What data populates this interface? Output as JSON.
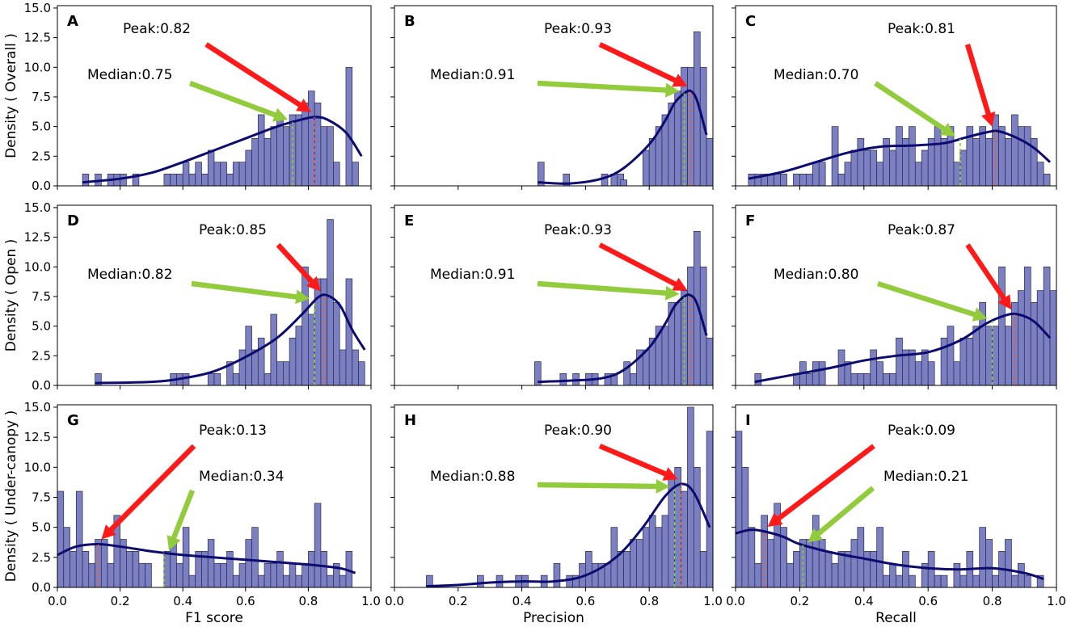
{
  "chart_data": [
    {
      "type": "histogram+kde",
      "panel": "A",
      "xlabel": "",
      "ylabel": "Density ( Overall )",
      "xlim": [
        0,
        1
      ],
      "ylim": [
        0,
        15.2
      ],
      "bin_width": 0.02,
      "x_ticks": [],
      "y_ticks": [
        "0.0",
        "2.5",
        "5.0",
        "7.5",
        "10.0",
        "12.5",
        "15.0"
      ],
      "bin_starts": [
        0.08,
        0.1,
        0.12,
        0.14,
        0.16,
        0.18,
        0.2,
        0.22,
        0.24,
        0.26,
        0.28,
        0.3,
        0.32,
        0.34,
        0.36,
        0.38,
        0.4,
        0.42,
        0.44,
        0.46,
        0.48,
        0.5,
        0.52,
        0.54,
        0.56,
        0.58,
        0.6,
        0.62,
        0.64,
        0.66,
        0.68,
        0.7,
        0.72,
        0.74,
        0.76,
        0.78,
        0.8,
        0.82,
        0.84,
        0.86,
        0.88,
        0.9,
        0.92,
        0.94,
        0.96
      ],
      "bin_values": [
        1,
        0,
        1,
        0,
        1,
        1,
        1,
        0,
        1,
        0,
        0,
        0,
        0,
        1,
        1,
        1,
        2,
        1,
        2,
        1,
        3,
        2,
        2,
        1,
        2,
        2,
        3,
        4,
        6,
        4,
        5,
        6,
        5,
        6,
        6,
        7,
        8,
        7,
        5,
        5,
        2,
        0,
        10,
        2,
        0
      ],
      "kde": {
        "x": [
          0.08,
          0.2,
          0.3,
          0.4,
          0.5,
          0.6,
          0.7,
          0.78,
          0.82,
          0.86,
          0.92,
          0.97
        ],
        "y": [
          0.3,
          0.6,
          1.1,
          2.0,
          3.0,
          4.0,
          5.0,
          5.6,
          5.8,
          5.6,
          4.5,
          2.5
        ]
      },
      "peak": {
        "value": 0.82,
        "label": "Peak:0.82"
      },
      "median": {
        "value": 0.75,
        "label": "Median:0.75"
      }
    },
    {
      "type": "histogram+kde",
      "panel": "B",
      "xlabel": "",
      "ylabel": "",
      "xlim": [
        0,
        1
      ],
      "ylim": [
        0,
        15.2
      ],
      "bin_width": 0.02,
      "x_ticks": [],
      "y_ticks": [],
      "bin_starts": [
        0.44,
        0.46,
        0.48,
        0.5,
        0.52,
        0.54,
        0.56,
        0.58,
        0.6,
        0.62,
        0.64,
        0.66,
        0.68,
        0.7,
        0.72,
        0.74,
        0.76,
        0.78,
        0.8,
        0.82,
        0.84,
        0.86,
        0.88,
        0.9,
        0.92,
        0.94,
        0.96,
        0.98
      ],
      "bin_values": [
        0,
        0,
        0,
        0,
        0,
        0,
        0,
        0,
        0,
        0,
        0,
        0,
        1,
        1,
        0,
        0,
        0,
        3,
        4,
        5,
        6,
        7,
        8,
        10,
        10,
        13,
        10,
        4
      ],
      "extra_bins": [
        {
          "start": 0.45,
          "value": 2
        },
        {
          "start": 0.53,
          "value": 1
        },
        {
          "start": 0.65,
          "value": 1
        },
        {
          "start": 0.71,
          "value": 0.5
        }
      ],
      "kde": {
        "x": [
          0.45,
          0.55,
          0.65,
          0.72,
          0.8,
          0.85,
          0.88,
          0.91,
          0.93,
          0.95,
          0.98
        ],
        "y": [
          0.3,
          0.2,
          0.6,
          1.5,
          3.5,
          5.5,
          7.0,
          7.8,
          8.0,
          7.2,
          4.3
        ]
      },
      "peak": {
        "value": 0.93,
        "label": "Peak:0.93"
      },
      "median": {
        "value": 0.91,
        "label": "Median:0.91"
      }
    },
    {
      "type": "histogram+kde",
      "panel": "C",
      "xlabel": "",
      "ylabel": "",
      "xlim": [
        0,
        1
      ],
      "ylim": [
        0,
        15.2
      ],
      "bin_width": 0.02,
      "x_ticks": [],
      "y_ticks": [],
      "bin_starts": [
        0.04,
        0.06,
        0.08,
        0.1,
        0.12,
        0.14,
        0.16,
        0.18,
        0.2,
        0.22,
        0.24,
        0.26,
        0.28,
        0.3,
        0.32,
        0.34,
        0.36,
        0.38,
        0.4,
        0.42,
        0.44,
        0.46,
        0.48,
        0.5,
        0.52,
        0.54,
        0.56,
        0.58,
        0.6,
        0.62,
        0.64,
        0.66,
        0.68,
        0.7,
        0.72,
        0.74,
        0.76,
        0.78,
        0.8,
        0.82,
        0.84,
        0.86,
        0.88,
        0.9,
        0.92,
        0.94,
        0.96,
        0.98
      ],
      "bin_values": [
        1,
        1,
        1,
        1,
        1,
        1,
        0,
        1,
        1,
        1,
        2,
        2,
        0,
        5,
        1,
        2,
        3,
        4,
        3,
        3,
        2,
        4,
        3,
        5,
        4,
        5,
        2,
        3,
        4,
        5,
        4,
        5,
        2,
        3,
        5,
        4,
        5,
        4,
        6,
        5,
        4,
        6,
        5,
        5,
        4,
        2,
        1,
        0
      ],
      "kde": {
        "x": [
          0.04,
          0.15,
          0.25,
          0.35,
          0.45,
          0.55,
          0.65,
          0.72,
          0.78,
          0.82,
          0.88,
          0.93,
          0.98
        ],
        "y": [
          0.6,
          1.2,
          2.0,
          2.8,
          3.3,
          3.4,
          3.6,
          4.1,
          4.5,
          4.6,
          4.0,
          3.2,
          2.0
        ]
      },
      "peak": {
        "value": 0.81,
        "label": "Peak:0.81"
      },
      "median": {
        "value": 0.7,
        "label": "Median:0.70"
      }
    },
    {
      "type": "histogram+kde",
      "panel": "D",
      "xlabel": "",
      "ylabel": "Density ( Open )",
      "xlim": [
        0,
        1
      ],
      "ylim": [
        0,
        15.2
      ],
      "bin_width": 0.02,
      "x_ticks": [],
      "y_ticks": [
        "0.0",
        "2.5",
        "5.0",
        "7.5",
        "10.0",
        "12.5",
        "15.0"
      ],
      "bin_starts": [
        0.12,
        0.14,
        0.16,
        0.18,
        0.2,
        0.22,
        0.24,
        0.26,
        0.28,
        0.3,
        0.32,
        0.34,
        0.36,
        0.38,
        0.4,
        0.42,
        0.44,
        0.46,
        0.48,
        0.5,
        0.52,
        0.54,
        0.56,
        0.58,
        0.6,
        0.62,
        0.64,
        0.66,
        0.68,
        0.7,
        0.72,
        0.74,
        0.76,
        0.78,
        0.8,
        0.82,
        0.84,
        0.86,
        0.88,
        0.9,
        0.92,
        0.94,
        0.96,
        0.98
      ],
      "bin_values": [
        1,
        0,
        0,
        0,
        0,
        0,
        0,
        0,
        0,
        0,
        0,
        0,
        1,
        1,
        1,
        0,
        0,
        0,
        1,
        1,
        0,
        2,
        1,
        3,
        5,
        3,
        4,
        1,
        6,
        2,
        2,
        4,
        5,
        10,
        6,
        9,
        9,
        14,
        7,
        3,
        9,
        3,
        2,
        0
      ],
      "kde": {
        "x": [
          0.12,
          0.3,
          0.4,
          0.5,
          0.6,
          0.7,
          0.78,
          0.83,
          0.86,
          0.9,
          0.94,
          0.98
        ],
        "y": [
          0.2,
          0.3,
          0.6,
          1.2,
          2.4,
          4.0,
          6.0,
          7.4,
          7.6,
          6.8,
          4.7,
          3.0
        ]
      },
      "peak": {
        "value": 0.85,
        "label": "Peak:0.85"
      },
      "median": {
        "value": 0.82,
        "label": "Median:0.82"
      }
    },
    {
      "type": "histogram+kde",
      "panel": "E",
      "xlabel": "",
      "ylabel": "",
      "xlim": [
        0,
        1
      ],
      "ylim": [
        0,
        15.2
      ],
      "bin_width": 0.02,
      "x_ticks": [],
      "y_ticks": [],
      "bin_starts": [
        0.44,
        0.46,
        0.48,
        0.5,
        0.52,
        0.54,
        0.56,
        0.58,
        0.6,
        0.62,
        0.64,
        0.66,
        0.68,
        0.7,
        0.72,
        0.74,
        0.76,
        0.78,
        0.8,
        0.82,
        0.84,
        0.86,
        0.88,
        0.9,
        0.92,
        0.94,
        0.96,
        0.98
      ],
      "bin_values": [
        2,
        0,
        0,
        0,
        1,
        0,
        1,
        0,
        1,
        1,
        0,
        1,
        1,
        0,
        2,
        1,
        3,
        3,
        4,
        5,
        5,
        7,
        7,
        8,
        10,
        13,
        10,
        4
      ],
      "kde": {
        "x": [
          0.45,
          0.55,
          0.65,
          0.72,
          0.8,
          0.85,
          0.88,
          0.91,
          0.93,
          0.95,
          0.98
        ],
        "y": [
          0.3,
          0.4,
          0.6,
          1.3,
          3.2,
          5.2,
          6.7,
          7.5,
          7.6,
          6.9,
          4.2
        ]
      },
      "peak": {
        "value": 0.93,
        "label": "Peak:0.93"
      },
      "median": {
        "value": 0.91,
        "label": "Median:0.91"
      }
    },
    {
      "type": "histogram+kde",
      "panel": "F",
      "xlabel": "",
      "ylabel": "",
      "xlim": [
        0,
        1
      ],
      "ylim": [
        0,
        15.2
      ],
      "bin_width": 0.02,
      "x_ticks": [],
      "y_ticks": [],
      "bin_starts": [
        0.06,
        0.08,
        0.1,
        0.12,
        0.14,
        0.16,
        0.18,
        0.2,
        0.22,
        0.24,
        0.26,
        0.28,
        0.3,
        0.32,
        0.34,
        0.36,
        0.38,
        0.4,
        0.42,
        0.44,
        0.46,
        0.48,
        0.5,
        0.52,
        0.54,
        0.56,
        0.58,
        0.6,
        0.62,
        0.64,
        0.66,
        0.68,
        0.7,
        0.72,
        0.74,
        0.76,
        0.78,
        0.8,
        0.82,
        0.84,
        0.86,
        0.88,
        0.9,
        0.92,
        0.94,
        0.96,
        0.98
      ],
      "bin_values": [
        1,
        0,
        0,
        0,
        0,
        0,
        1,
        2,
        1,
        2,
        2,
        0,
        0,
        3,
        2,
        1,
        1,
        1,
        3,
        2,
        1,
        1,
        4,
        3,
        3,
        2,
        3,
        2,
        0,
        4,
        5,
        2,
        4,
        4,
        5,
        7,
        5,
        5,
        10,
        5,
        7,
        8,
        10,
        7,
        8,
        10,
        8
      ],
      "kde": {
        "x": [
          0.06,
          0.2,
          0.3,
          0.4,
          0.5,
          0.6,
          0.7,
          0.78,
          0.84,
          0.88,
          0.93,
          0.98
        ],
        "y": [
          0.3,
          1.0,
          1.5,
          2.1,
          2.5,
          2.8,
          3.8,
          5.2,
          5.9,
          6.0,
          5.4,
          4.0
        ]
      },
      "peak": {
        "value": 0.87,
        "label": "Peak:0.87"
      },
      "median": {
        "value": 0.8,
        "label": "Median:0.80"
      }
    },
    {
      "type": "histogram+kde",
      "panel": "G",
      "xlabel": "F1 score",
      "ylabel": "Density ( Under-canopy )",
      "xlim": [
        0,
        1
      ],
      "ylim": [
        0,
        15.2
      ],
      "bin_width": 0.02,
      "x_ticks": [
        "0.0",
        "0.2",
        "0.4",
        "0.6",
        "0.8",
        "1.0"
      ],
      "y_ticks": [
        "0.0",
        "2.5",
        "5.0",
        "7.5",
        "10.0",
        "12.5",
        "15.0"
      ],
      "bin_starts": [
        0.0,
        0.02,
        0.04,
        0.06,
        0.08,
        0.1,
        0.12,
        0.14,
        0.16,
        0.18,
        0.2,
        0.22,
        0.24,
        0.26,
        0.28,
        0.3,
        0.32,
        0.34,
        0.36,
        0.38,
        0.4,
        0.42,
        0.44,
        0.46,
        0.48,
        0.5,
        0.52,
        0.54,
        0.56,
        0.58,
        0.6,
        0.62,
        0.64,
        0.66,
        0.68,
        0.7,
        0.72,
        0.74,
        0.76,
        0.78,
        0.8,
        0.82,
        0.84,
        0.86,
        0.88,
        0.9,
        0.92,
        0.94
      ],
      "bin_values": [
        8,
        5,
        3,
        8,
        3,
        2,
        4,
        4,
        2,
        6,
        4,
        3,
        3,
        2,
        2,
        0,
        0,
        3,
        4,
        2,
        5,
        1,
        3,
        3,
        4,
        2,
        2,
        3,
        1,
        2,
        4,
        5,
        1,
        2,
        2,
        3,
        1,
        2,
        1,
        2,
        3,
        7,
        3,
        1,
        2,
        1,
        3,
        0
      ],
      "kde": {
        "x": [
          0.0,
          0.06,
          0.13,
          0.2,
          0.3,
          0.4,
          0.5,
          0.6,
          0.7,
          0.8,
          0.9,
          0.95
        ],
        "y": [
          2.7,
          3.4,
          3.6,
          3.4,
          3.0,
          2.7,
          2.5,
          2.3,
          2.1,
          1.9,
          1.6,
          1.2
        ]
      },
      "peak": {
        "value": 0.13,
        "label": "Peak:0.13"
      },
      "median": {
        "value": 0.34,
        "label": "Median:0.34"
      }
    },
    {
      "type": "histogram+kde",
      "panel": "H",
      "xlabel": "Precision",
      "ylabel": "",
      "xlim": [
        0,
        1
      ],
      "ylim": [
        0,
        15.2
      ],
      "bin_width": 0.02,
      "x_ticks": [
        "0.0",
        "0.2",
        "0.4",
        "0.6",
        "0.8",
        "1.0"
      ],
      "y_ticks": [],
      "bin_starts": [
        0.1,
        0.12,
        0.14,
        0.16,
        0.18,
        0.2,
        0.22,
        0.24,
        0.26,
        0.28,
        0.3,
        0.32,
        0.34,
        0.36,
        0.38,
        0.4,
        0.42,
        0.44,
        0.46,
        0.48,
        0.5,
        0.52,
        0.54,
        0.56,
        0.58,
        0.6,
        0.62,
        0.64,
        0.66,
        0.68,
        0.7,
        0.72,
        0.74,
        0.76,
        0.78,
        0.8,
        0.82,
        0.84,
        0.86,
        0.88,
        0.9,
        0.92,
        0.94,
        0.96,
        0.98
      ],
      "bin_values": [
        1,
        0,
        0,
        0,
        0,
        0,
        0,
        0,
        1,
        0,
        0,
        1,
        0,
        0,
        1,
        1,
        0,
        0,
        1,
        0,
        2,
        0,
        1,
        1,
        2,
        3,
        2,
        2,
        2,
        5,
        3,
        3,
        4,
        4,
        5,
        6,
        5,
        6,
        9,
        10,
        8,
        15,
        10,
        3,
        13
      ],
      "kde": {
        "x": [
          0.1,
          0.2,
          0.3,
          0.4,
          0.5,
          0.6,
          0.7,
          0.78,
          0.85,
          0.9,
          0.94,
          0.99
        ],
        "y": [
          0.1,
          0.2,
          0.4,
          0.5,
          0.5,
          1.0,
          2.6,
          5.0,
          7.6,
          8.6,
          7.9,
          5.0
        ]
      },
      "peak": {
        "value": 0.9,
        "label": "Peak:0.90"
      },
      "median": {
        "value": 0.88,
        "label": "Median:0.88"
      }
    },
    {
      "type": "histogram+kde",
      "panel": "I",
      "xlabel": "Recall",
      "ylabel": "",
      "xlim": [
        0,
        1
      ],
      "ylim": [
        0,
        15.2
      ],
      "bin_width": 0.02,
      "x_ticks": [
        "0.0",
        "0.2",
        "0.4",
        "0.6",
        "0.8",
        "1.0"
      ],
      "y_ticks": [],
      "bin_starts": [
        0.0,
        0.02,
        0.04,
        0.06,
        0.08,
        0.1,
        0.12,
        0.14,
        0.16,
        0.18,
        0.2,
        0.22,
        0.24,
        0.26,
        0.28,
        0.3,
        0.32,
        0.34,
        0.36,
        0.38,
        0.4,
        0.42,
        0.44,
        0.46,
        0.48,
        0.5,
        0.52,
        0.54,
        0.56,
        0.58,
        0.6,
        0.62,
        0.64,
        0.66,
        0.68,
        0.7,
        0.72,
        0.74,
        0.76,
        0.78,
        0.8,
        0.82,
        0.84,
        0.86,
        0.88,
        0.9,
        0.92,
        0.94
      ],
      "bin_values": [
        13,
        10,
        5,
        2,
        6,
        4,
        7,
        5,
        2,
        3,
        4,
        4,
        6,
        4,
        3,
        2,
        3,
        3,
        4,
        5,
        3,
        3,
        5,
        1,
        2,
        1,
        3,
        1,
        0,
        2,
        3,
        1,
        1,
        0,
        2,
        1,
        3,
        1,
        5,
        4,
        1,
        3,
        4,
        1,
        2,
        1,
        0,
        1
      ],
      "kde": {
        "x": [
          0.0,
          0.05,
          0.1,
          0.15,
          0.2,
          0.3,
          0.4,
          0.5,
          0.6,
          0.7,
          0.8,
          0.9,
          0.96
        ],
        "y": [
          4.5,
          4.8,
          4.6,
          4.2,
          3.6,
          2.9,
          2.4,
          1.9,
          1.6,
          1.5,
          1.6,
          1.2,
          0.7
        ]
      },
      "peak": {
        "value": 0.09,
        "label": "Peak:0.09"
      },
      "median": {
        "value": 0.21,
        "label": "Median:0.21"
      }
    }
  ],
  "colors": {
    "bar": "#7b7fc4",
    "kde": "#0b0b70",
    "peak": "#ff1a1a",
    "median": "#92cb3c"
  }
}
